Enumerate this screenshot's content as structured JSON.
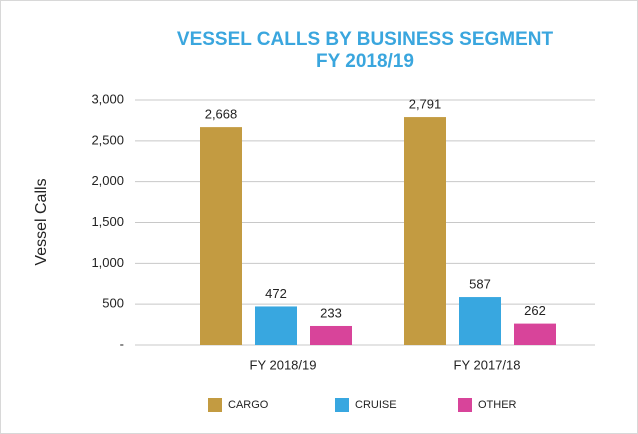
{
  "chart_data": {
    "type": "bar",
    "title": "VESSEL CALLS BY BUSINESS SEGMENT",
    "subtitle": "FY 2018/19",
    "y_label": "Vessel Calls",
    "categories": [
      "FY 2018/19",
      "FY 2017/18"
    ],
    "series": [
      {
        "name": "CARGO",
        "color": "#c39b41",
        "values": [
          2668,
          2791
        ],
        "value_labels": [
          "2,668",
          "2,791"
        ]
      },
      {
        "name": "CRUISE",
        "color": "#38a7e0",
        "values": [
          472,
          587
        ]
      },
      {
        "name": "OTHER",
        "color": "#d8449a",
        "values": [
          233,
          262
        ]
      }
    ],
    "ylim": [
      0,
      3000
    ],
    "yticks": [
      {
        "value": 0,
        "label": "-"
      },
      500,
      {
        "value": 1000,
        "label": "1,000"
      },
      {
        "value": 1500,
        "label": "1,500"
      },
      {
        "value": 2000,
        "label": "2,000"
      },
      {
        "value": 2500,
        "label": "2,500"
      },
      {
        "value": 3000,
        "label": "3,000"
      }
    ],
    "grid": true,
    "legend": "bottom"
  }
}
